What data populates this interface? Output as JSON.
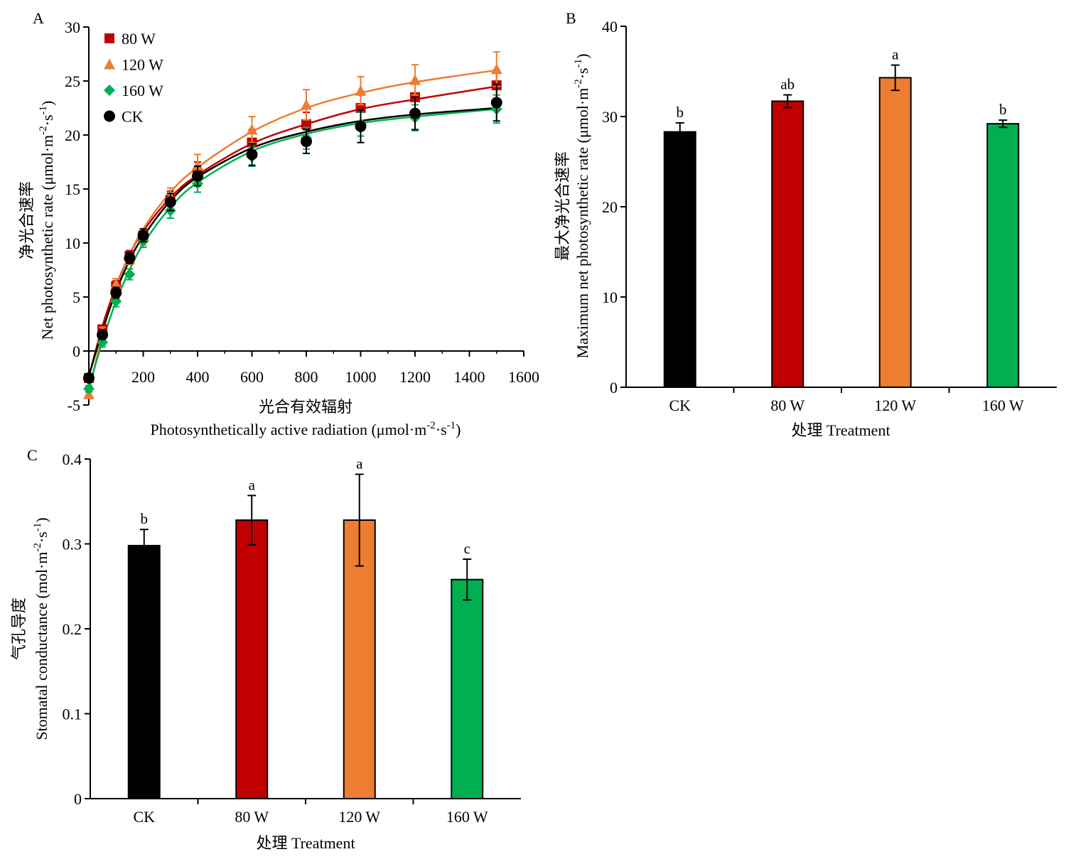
{
  "chart_data": [
    {
      "panel": "A",
      "type": "line",
      "xlabel_cn": "光合有效辐射",
      "xlabel_en": "Photosynthetically active radiation (μmol·m",
      "xlabel_unit_sup1": "-2",
      "xlabel_unit_mid": "·s",
      "xlabel_unit_sup2": "-1",
      "xlabel_unit_end": ")",
      "ylabel_cn": "净光合速率",
      "ylabel_en": "Net photosynthetic rate (μmol·m",
      "ylabel_unit_sup1": "-2",
      "ylabel_unit_mid": "·s",
      "ylabel_unit_sup2": "-1",
      "ylabel_unit_end": ")",
      "xlim": [
        0,
        1600
      ],
      "ylim": [
        -5,
        30
      ],
      "xticks": [
        200,
        400,
        600,
        800,
        1000,
        1200,
        1400,
        1600
      ],
      "yticks": [
        -5,
        0,
        5,
        10,
        15,
        20,
        25,
        30
      ],
      "legend_position": "top-left",
      "x": [
        0,
        50,
        100,
        150,
        200,
        300,
        400,
        600,
        800,
        1000,
        1200,
        1500
      ],
      "series": [
        {
          "name": "80 W",
          "color": "#c00000",
          "marker": "square",
          "values": [
            -2.5,
            2.0,
            6.0,
            8.8,
            10.7,
            14.0,
            16.5,
            19.3,
            21.0,
            22.5,
            23.5,
            24.6
          ],
          "errors": [
            0.3,
            0.4,
            0.5,
            0.5,
            0.6,
            0.8,
            1.0,
            1.2,
            1.1,
            1.2,
            1.2,
            1.4
          ],
          "fit": [
            -2.4,
            2.3,
            6.0,
            8.9,
            11.1,
            14.2,
            16.3,
            19.2,
            21.0,
            22.4,
            23.3,
            24.5
          ]
        },
        {
          "name": "120 W",
          "color": "#ed7d31",
          "marker": "triangle",
          "values": [
            -4.0,
            1.8,
            6.2,
            8.5,
            10.5,
            14.3,
            17.2,
            20.5,
            22.8,
            24.1,
            25.1,
            26.1
          ],
          "errors": [
            0.3,
            0.4,
            0.5,
            0.5,
            0.7,
            0.8,
            1.0,
            1.2,
            1.4,
            1.3,
            1.4,
            1.6
          ],
          "fit": [
            -3.8,
            1.6,
            5.8,
            8.9,
            11.3,
            14.7,
            17.0,
            20.3,
            22.5,
            23.9,
            24.9,
            26.0
          ]
        },
        {
          "name": "160 W",
          "color": "#00b050",
          "marker": "diamond",
          "values": [
            -3.5,
            0.8,
            4.6,
            7.1,
            10.2,
            13.0,
            15.5,
            18.0,
            19.7,
            21.0,
            21.6,
            22.4
          ],
          "errors": [
            0.3,
            0.4,
            0.5,
            0.5,
            0.6,
            0.7,
            0.8,
            0.9,
            1.0,
            1.1,
            1.2,
            1.3
          ],
          "fit": [
            -3.4,
            0.9,
            4.6,
            7.5,
            9.9,
            13.3,
            15.6,
            18.5,
            20.1,
            21.1,
            21.7,
            22.4
          ]
        },
        {
          "name": "CK",
          "color": "#000000",
          "marker": "circle",
          "values": [
            -2.5,
            1.5,
            5.4,
            8.6,
            10.7,
            13.8,
            16.2,
            18.2,
            19.4,
            20.8,
            22.0,
            23.0
          ],
          "errors": [
            0.3,
            0.4,
            0.5,
            0.5,
            0.6,
            0.8,
            0.9,
            1.0,
            1.1,
            1.5,
            1.5,
            1.7
          ],
          "fit": [
            -2.3,
            1.9,
            5.5,
            8.4,
            10.6,
            13.9,
            16.1,
            18.8,
            20.3,
            21.3,
            21.9,
            22.5
          ]
        }
      ]
    },
    {
      "panel": "B",
      "type": "bar",
      "categories": [
        "CK",
        "80 W",
        "120 W",
        "160 W"
      ],
      "values": [
        28.3,
        31.7,
        34.3,
        29.2
      ],
      "errors": [
        1.0,
        0.7,
        1.4,
        0.4
      ],
      "significance": [
        "b",
        "ab",
        "a",
        "b"
      ],
      "colors": [
        "#000000",
        "#c00000",
        "#ed7d31",
        "#00b050"
      ],
      "ylim": [
        0,
        40
      ],
      "yticks": [
        0,
        10,
        20,
        30,
        40
      ],
      "xlabel": "处理 Treatment",
      "ylabel_cn": "最大净光合速率",
      "ylabel_en": "Maximum net photosynthetic rate (μmol·m",
      "ylabel_unit_sup1": "-2",
      "ylabel_unit_mid": "·s",
      "ylabel_unit_sup2": "-1",
      "ylabel_unit_end": ")"
    },
    {
      "panel": "C",
      "type": "bar",
      "categories": [
        "CK",
        "80 W",
        "120 W",
        "160 W"
      ],
      "values": [
        0.298,
        0.328,
        0.328,
        0.258
      ],
      "errors": [
        0.019,
        0.029,
        0.054,
        0.024
      ],
      "significance": [
        "b",
        "a",
        "a",
        "c"
      ],
      "colors": [
        "#000000",
        "#c00000",
        "#ed7d31",
        "#00b050"
      ],
      "ylim": [
        0,
        0.4
      ],
      "yticks": [
        0,
        0.1,
        0.2,
        0.3,
        0.4
      ],
      "ytick_labels": [
        "0",
        "0.1",
        "0.2",
        "0.3",
        "0.4"
      ],
      "xlabel": "处理 Treatment",
      "ylabel_cn": "气孔导度",
      "ylabel_en": "Stomatal conductance (mol·m",
      "ylabel_unit_sup1": "-2",
      "ylabel_unit_mid": "·s",
      "ylabel_unit_sup2": "-1",
      "ylabel_unit_end": ")"
    }
  ]
}
